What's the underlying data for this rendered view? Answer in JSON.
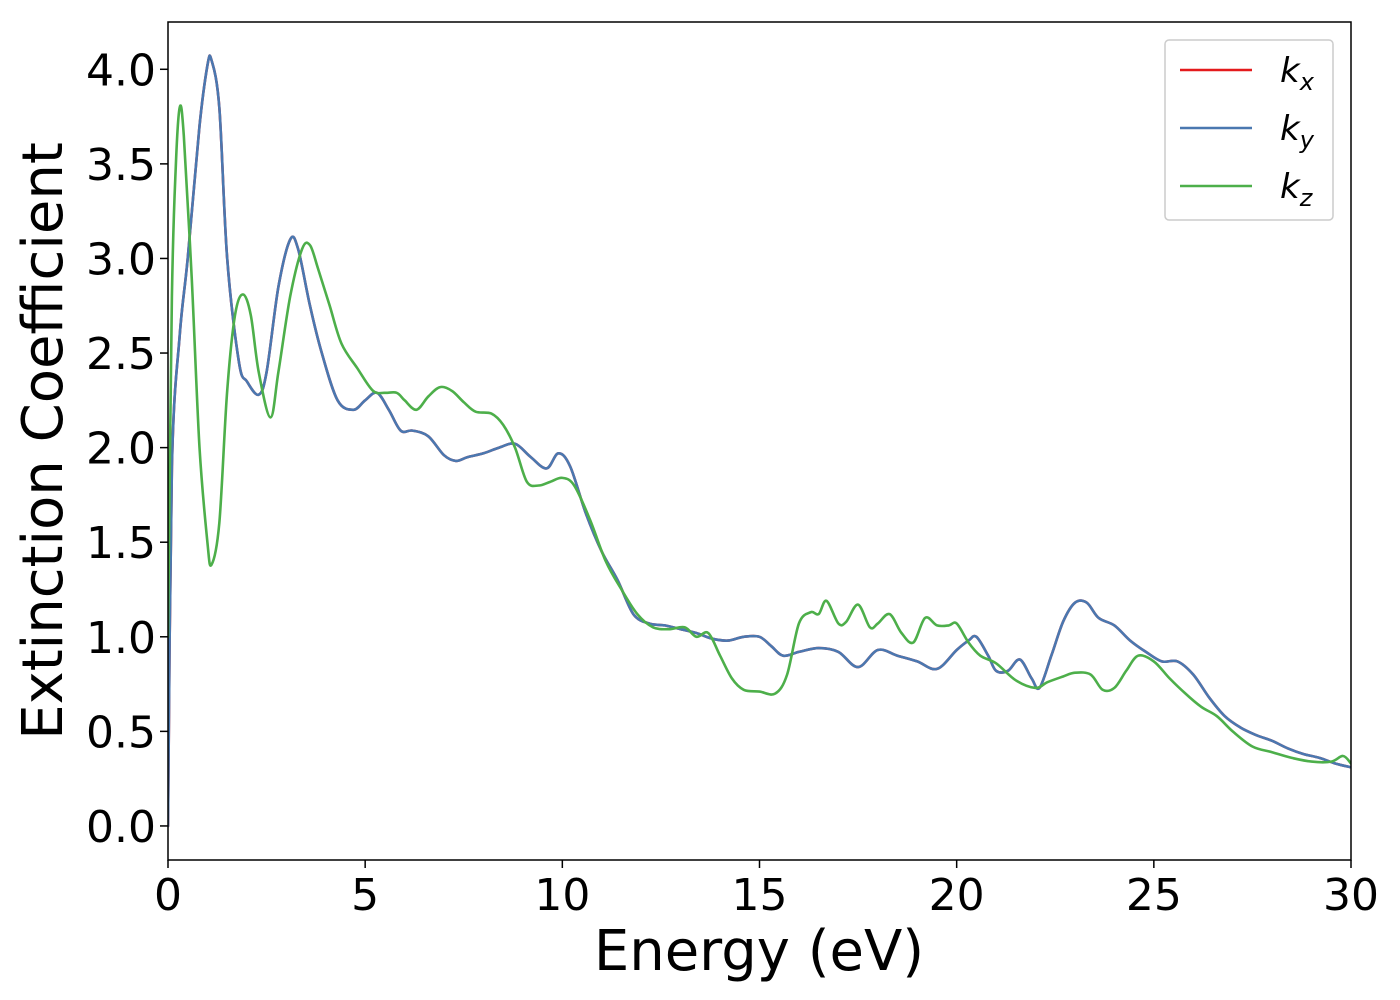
{
  "chart_data": {
    "type": "line",
    "xlabel": "Energy (eV)",
    "ylabel": "Extinction Coefficient",
    "xlim": [
      0,
      30
    ],
    "ylim": [
      -0.18,
      4.25
    ],
    "xticks": [
      0,
      5,
      10,
      15,
      20,
      25,
      30
    ],
    "xtick_labels": [
      "0",
      "5",
      "10",
      "15",
      "20",
      "25",
      "30"
    ],
    "yticks": [
      0.0,
      0.5,
      1.0,
      1.5,
      2.0,
      2.5,
      3.0,
      3.5,
      4.0
    ],
    "ytick_labels": [
      "0.0",
      "0.5",
      "1.0",
      "1.5",
      "2.0",
      "2.5",
      "3.0",
      "3.5",
      "4.0"
    ],
    "grid": false,
    "legend_position": "top-right",
    "series": [
      {
        "name": "k",
        "subscript": "x",
        "color": "#e41a1c",
        "x": [
          0,
          0.1,
          0.3,
          0.5,
          0.8,
          1.0,
          1.1,
          1.3,
          1.5,
          1.8,
          2.0,
          2.3,
          2.5,
          2.8,
          3.1,
          3.3,
          3.6,
          3.9,
          4.3,
          4.7,
          5.0,
          5.3,
          5.6,
          5.9,
          6.2,
          6.6,
          7.0,
          7.3,
          7.6,
          8.0,
          8.4,
          8.8,
          9.2,
          9.6,
          9.9,
          10.2,
          10.6,
          11.0,
          11.4,
          11.8,
          12.2,
          12.6,
          13.0,
          13.4,
          13.8,
          14.2,
          14.6,
          15.0,
          15.3,
          15.6,
          16.0,
          16.5,
          17.0,
          17.5,
          18.0,
          18.5,
          19.0,
          19.5,
          20.0,
          20.3,
          20.5,
          20.8,
          21.0,
          21.3,
          21.6,
          21.9,
          22.1,
          22.4,
          22.7,
          23.0,
          23.3,
          23.6,
          24.0,
          24.4,
          24.8,
          25.2,
          25.6,
          26.0,
          26.4,
          26.8,
          27.2,
          27.6,
          28.0,
          28.4,
          28.8,
          29.2,
          29.6,
          30.0
        ],
        "values": [
          0.0,
          1.9,
          2.6,
          3.0,
          3.7,
          4.02,
          4.05,
          3.8,
          3.0,
          2.45,
          2.35,
          2.28,
          2.4,
          2.85,
          3.1,
          3.05,
          2.75,
          2.5,
          2.25,
          2.2,
          2.25,
          2.29,
          2.2,
          2.09,
          2.09,
          2.06,
          1.96,
          1.93,
          1.95,
          1.97,
          2.0,
          2.02,
          1.95,
          1.89,
          1.97,
          1.9,
          1.65,
          1.45,
          1.3,
          1.12,
          1.07,
          1.06,
          1.04,
          1.02,
          0.99,
          0.98,
          1.0,
          1.0,
          0.95,
          0.9,
          0.92,
          0.94,
          0.92,
          0.84,
          0.93,
          0.9,
          0.87,
          0.83,
          0.93,
          0.98,
          1.0,
          0.9,
          0.82,
          0.82,
          0.88,
          0.78,
          0.73,
          0.9,
          1.08,
          1.18,
          1.18,
          1.1,
          1.06,
          0.98,
          0.92,
          0.87,
          0.87,
          0.8,
          0.68,
          0.58,
          0.52,
          0.48,
          0.45,
          0.41,
          0.38,
          0.36,
          0.33,
          0.31
        ]
      },
      {
        "name": "k",
        "subscript": "y",
        "color": "#4a78b0",
        "x": [
          0,
          0.1,
          0.3,
          0.5,
          0.8,
          1.0,
          1.1,
          1.3,
          1.5,
          1.8,
          2.0,
          2.3,
          2.5,
          2.8,
          3.1,
          3.3,
          3.6,
          3.9,
          4.3,
          4.7,
          5.0,
          5.3,
          5.6,
          5.9,
          6.2,
          6.6,
          7.0,
          7.3,
          7.6,
          8.0,
          8.4,
          8.8,
          9.2,
          9.6,
          9.9,
          10.2,
          10.6,
          11.0,
          11.4,
          11.8,
          12.2,
          12.6,
          13.0,
          13.4,
          13.8,
          14.2,
          14.6,
          15.0,
          15.3,
          15.6,
          16.0,
          16.5,
          17.0,
          17.5,
          18.0,
          18.5,
          19.0,
          19.5,
          20.0,
          20.3,
          20.5,
          20.8,
          21.0,
          21.3,
          21.6,
          21.9,
          22.1,
          22.4,
          22.7,
          23.0,
          23.3,
          23.6,
          24.0,
          24.4,
          24.8,
          25.2,
          25.6,
          26.0,
          26.4,
          26.8,
          27.2,
          27.6,
          28.0,
          28.4,
          28.8,
          29.2,
          29.6,
          30.0
        ],
        "values": [
          0.0,
          1.9,
          2.6,
          3.0,
          3.7,
          4.02,
          4.05,
          3.8,
          3.0,
          2.45,
          2.35,
          2.28,
          2.4,
          2.85,
          3.1,
          3.05,
          2.75,
          2.5,
          2.25,
          2.2,
          2.25,
          2.29,
          2.2,
          2.09,
          2.09,
          2.06,
          1.96,
          1.93,
          1.95,
          1.97,
          2.0,
          2.02,
          1.95,
          1.89,
          1.97,
          1.9,
          1.65,
          1.45,
          1.3,
          1.12,
          1.07,
          1.06,
          1.04,
          1.02,
          0.99,
          0.98,
          1.0,
          1.0,
          0.95,
          0.9,
          0.92,
          0.94,
          0.92,
          0.84,
          0.93,
          0.9,
          0.87,
          0.83,
          0.93,
          0.98,
          1.0,
          0.9,
          0.82,
          0.82,
          0.88,
          0.78,
          0.73,
          0.9,
          1.08,
          1.18,
          1.18,
          1.1,
          1.06,
          0.98,
          0.92,
          0.87,
          0.87,
          0.8,
          0.68,
          0.58,
          0.52,
          0.48,
          0.45,
          0.41,
          0.38,
          0.36,
          0.33,
          0.31
        ]
      },
      {
        "name": "k",
        "subscript": "z",
        "color": "#4daf4a",
        "x": [
          0,
          0.1,
          0.2,
          0.3,
          0.4,
          0.6,
          0.8,
          1.0,
          1.1,
          1.3,
          1.5,
          1.7,
          1.9,
          2.1,
          2.3,
          2.6,
          2.8,
          3.1,
          3.4,
          3.6,
          3.8,
          4.1,
          4.4,
          4.8,
          5.2,
          5.5,
          5.8,
          6.0,
          6.3,
          6.6,
          6.9,
          7.2,
          7.5,
          7.8,
          8.2,
          8.5,
          8.8,
          9.1,
          9.4,
          9.7,
          10.0,
          10.3,
          10.7,
          11.1,
          11.5,
          11.9,
          12.3,
          12.7,
          13.1,
          13.4,
          13.7,
          14.0,
          14.3,
          14.6,
          15.0,
          15.4,
          15.7,
          16.0,
          16.3,
          16.5,
          16.7,
          17.0,
          17.2,
          17.5,
          17.8,
          18.0,
          18.3,
          18.6,
          18.9,
          19.2,
          19.5,
          19.8,
          20.0,
          20.3,
          20.6,
          21.0,
          21.5,
          22.0,
          22.3,
          22.7,
          23.0,
          23.4,
          23.7,
          24.0,
          24.3,
          24.6,
          25.0,
          25.4,
          25.8,
          26.2,
          26.6,
          27.0,
          27.5,
          28.0,
          28.5,
          29.0,
          29.5,
          29.8,
          30.0
        ],
        "values": [
          1.0,
          2.8,
          3.5,
          3.8,
          3.65,
          2.9,
          2.0,
          1.5,
          1.38,
          1.6,
          2.3,
          2.7,
          2.81,
          2.7,
          2.4,
          2.16,
          2.4,
          2.8,
          3.05,
          3.07,
          2.95,
          2.75,
          2.55,
          2.42,
          2.3,
          2.29,
          2.29,
          2.25,
          2.2,
          2.27,
          2.32,
          2.3,
          2.24,
          2.19,
          2.18,
          2.12,
          2.0,
          1.82,
          1.8,
          1.82,
          1.84,
          1.8,
          1.62,
          1.4,
          1.25,
          1.12,
          1.05,
          1.04,
          1.05,
          1.0,
          1.02,
          0.9,
          0.78,
          0.72,
          0.71,
          0.7,
          0.8,
          1.07,
          1.13,
          1.12,
          1.19,
          1.07,
          1.08,
          1.17,
          1.05,
          1.07,
          1.12,
          1.02,
          0.97,
          1.1,
          1.06,
          1.06,
          1.07,
          0.97,
          0.9,
          0.86,
          0.77,
          0.73,
          0.76,
          0.79,
          0.81,
          0.8,
          0.72,
          0.73,
          0.82,
          0.9,
          0.87,
          0.78,
          0.7,
          0.63,
          0.58,
          0.5,
          0.42,
          0.39,
          0.36,
          0.34,
          0.34,
          0.37,
          0.33
        ]
      }
    ]
  }
}
